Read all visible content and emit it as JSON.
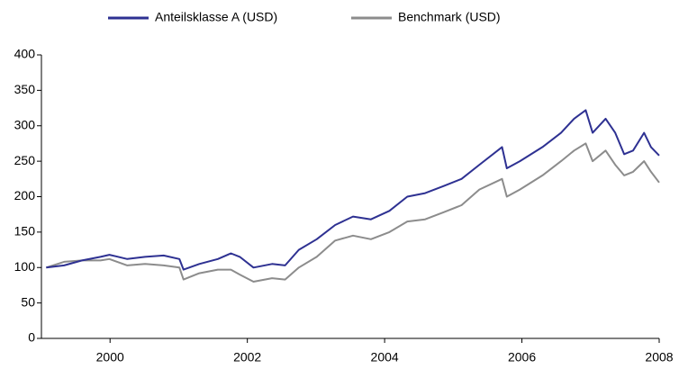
{
  "chart_data": {
    "type": "line",
    "x": [
      1999.07,
      1999.33,
      1999.59,
      1999.86,
      1999.99,
      2000.25,
      2000.51,
      2000.78,
      2001.01,
      2001.07,
      2001.3,
      2001.57,
      2001.76,
      2001.89,
      2002.09,
      2002.36,
      2002.55,
      2002.75,
      2003.01,
      2003.28,
      2003.54,
      2003.8,
      2004.07,
      2004.33,
      2004.59,
      2004.86,
      2005.12,
      2005.38,
      2005.71,
      2005.78,
      2005.97,
      2006.3,
      2006.57,
      2006.76,
      2006.93,
      2007.03,
      2007.22,
      2007.36,
      2007.49,
      2007.62,
      2007.78,
      2007.88,
      2008.0
    ],
    "series": [
      {
        "name": "Anteilsklasse A (USD)",
        "color": "#2e3192",
        "values": [
          100,
          103,
          110,
          115,
          118,
          112,
          115,
          117,
          112,
          97,
          105,
          112,
          120,
          115,
          100,
          105,
          103,
          125,
          140,
          160,
          172,
          168,
          180,
          200,
          205,
          215,
          225,
          245,
          270,
          240,
          250,
          270,
          290,
          310,
          322,
          290,
          310,
          290,
          260,
          265,
          290,
          270,
          258
        ]
      },
      {
        "name": "Benchmark (USD)",
        "color": "#8c8c8c",
        "values": [
          100,
          108,
          110,
          110,
          112,
          103,
          105,
          103,
          100,
          83,
          92,
          97,
          97,
          90,
          80,
          85,
          83,
          100,
          115,
          138,
          145,
          140,
          150,
          165,
          168,
          178,
          188,
          210,
          225,
          200,
          210,
          230,
          250,
          265,
          275,
          250,
          265,
          245,
          230,
          235,
          250,
          235,
          220
        ]
      }
    ],
    "xlim": [
      1999.0,
      2008.0
    ],
    "xticks": [
      2000,
      2002,
      2004,
      2006,
      2008
    ],
    "ylim": [
      0,
      400
    ],
    "yticks": [
      0,
      50,
      100,
      150,
      200,
      250,
      300,
      350,
      400
    ],
    "grid": false
  }
}
